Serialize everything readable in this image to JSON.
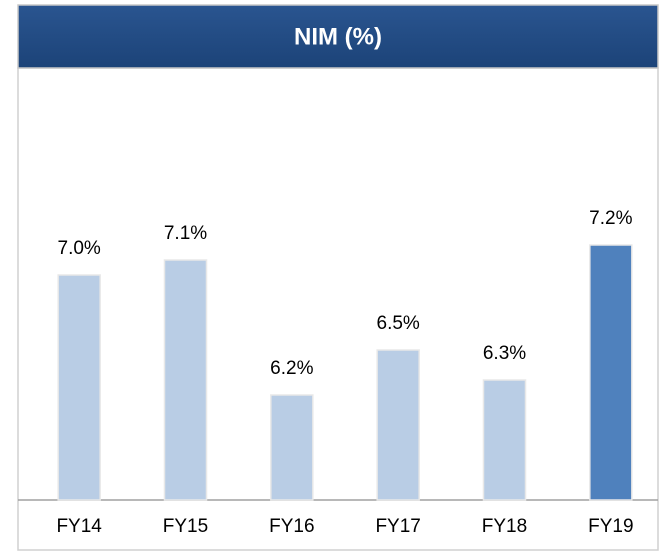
{
  "chart_data": {
    "type": "bar",
    "title": "NIM (%)",
    "categories": [
      "FY14",
      "FY15",
      "FY16",
      "FY17",
      "FY18",
      "FY19"
    ],
    "values": [
      7.0,
      7.1,
      6.2,
      6.5,
      6.3,
      7.2
    ],
    "value_labels": [
      "7.0%",
      "7.1%",
      "6.2%",
      "6.5%",
      "6.3%",
      "7.2%"
    ],
    "colors": [
      "#b9cde5",
      "#b9cde5",
      "#b9cde5",
      "#b9cde5",
      "#b9cde5",
      "#4f81bd"
    ],
    "ylim": [
      5.5,
      8.2
    ]
  }
}
